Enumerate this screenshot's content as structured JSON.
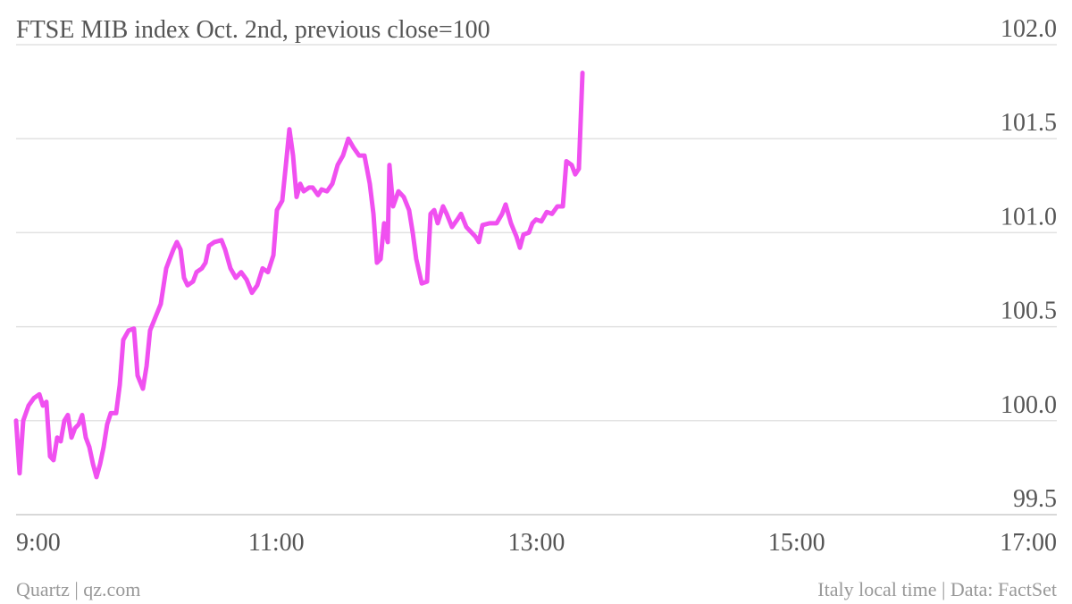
{
  "chart_data": {
    "type": "line",
    "title": "FTSE MIB index Oct. 2nd, previous close=100",
    "source_left": "Quartz | qz.com",
    "source_right": "Italy local time | Data: FactSet",
    "color": "#f050f0",
    "grid": true,
    "xlim": [
      9,
      17
    ],
    "xticks": [
      {
        "value": 9,
        "label": "9:00"
      },
      {
        "value": 11,
        "label": "11:00"
      },
      {
        "value": 13,
        "label": "13:00"
      },
      {
        "value": 15,
        "label": "15:00"
      },
      {
        "value": 17,
        "label": "17:00"
      }
    ],
    "ylim": [
      99.5,
      102
    ],
    "yticks": [
      99.5,
      {
        "value": 100,
        "label": "100.0"
      },
      100.5,
      {
        "value": 101,
        "label": "101.0"
      },
      101.5,
      {
        "value": 102,
        "label": "102.0"
      }
    ],
    "x": [
      9.0,
      9.027,
      9.055,
      9.096,
      9.137,
      9.179,
      9.206,
      9.233,
      9.261,
      9.288,
      9.316,
      9.343,
      9.371,
      9.398,
      9.426,
      9.453,
      9.481,
      9.508,
      9.536,
      9.563,
      9.591,
      9.618,
      9.646,
      9.673,
      9.7,
      9.728,
      9.769,
      9.797,
      9.824,
      9.865,
      9.906,
      9.934,
      9.975,
      10.003,
      10.03,
      10.071,
      10.112,
      10.154,
      10.181,
      10.209,
      10.236,
      10.264,
      10.291,
      10.318,
      10.36,
      10.387,
      10.428,
      10.456,
      10.483,
      10.524,
      10.579,
      10.607,
      10.648,
      10.689,
      10.73,
      10.772,
      10.813,
      10.854,
      10.895,
      10.936,
      10.978,
      11.005,
      11.046,
      11.074,
      11.101,
      11.129,
      11.156,
      11.184,
      11.211,
      11.252,
      11.28,
      11.321,
      11.348,
      11.39,
      11.431,
      11.472,
      11.513,
      11.554,
      11.596,
      11.637,
      11.678,
      11.719,
      11.747,
      11.774,
      11.802,
      11.829,
      11.857,
      11.87,
      11.898,
      11.939,
      11.98,
      12.021,
      12.049,
      12.076,
      12.118,
      12.159,
      12.186,
      12.214,
      12.241,
      12.282,
      12.31,
      12.351,
      12.392,
      12.42,
      12.461,
      12.502,
      12.53,
      12.557,
      12.585,
      12.64,
      12.694,
      12.736,
      12.763,
      12.804,
      12.846,
      12.873,
      12.9,
      12.942,
      12.969,
      12.997,
      13.038,
      13.079,
      13.12,
      13.161,
      13.203,
      13.23,
      13.271,
      13.298,
      13.326,
      13.354
    ],
    "values": [
      100.0,
      99.72,
      100.0,
      100.08,
      100.12,
      100.14,
      100.08,
      100.1,
      99.81,
      99.79,
      99.91,
      99.89,
      100.0,
      100.03,
      99.91,
      99.96,
      99.98,
      100.03,
      99.91,
      99.86,
      99.77,
      99.7,
      99.77,
      99.86,
      99.98,
      100.04,
      100.04,
      100.19,
      100.43,
      100.48,
      100.49,
      100.24,
      100.17,
      100.29,
      100.48,
      100.55,
      100.62,
      100.81,
      100.86,
      100.91,
      100.95,
      100.91,
      100.76,
      100.72,
      100.74,
      100.79,
      100.81,
      100.84,
      100.93,
      100.95,
      100.96,
      100.91,
      100.81,
      100.76,
      100.79,
      100.75,
      100.68,
      100.72,
      100.81,
      100.79,
      100.88,
      101.12,
      101.17,
      101.36,
      101.55,
      101.41,
      101.19,
      101.26,
      101.22,
      101.24,
      101.24,
      101.2,
      101.23,
      101.22,
      101.26,
      101.36,
      101.41,
      101.5,
      101.45,
      101.41,
      101.41,
      101.26,
      101.1,
      100.84,
      100.86,
      101.05,
      100.95,
      101.36,
      101.14,
      101.22,
      101.19,
      101.12,
      101.0,
      100.86,
      100.73,
      100.74,
      101.1,
      101.12,
      101.05,
      101.14,
      101.1,
      101.03,
      101.07,
      101.1,
      101.03,
      101.0,
      100.98,
      100.95,
      101.04,
      101.05,
      101.05,
      101.1,
      101.15,
      101.05,
      100.98,
      100.92,
      100.99,
      101.0,
      101.05,
      101.07,
      101.06,
      101.11,
      101.1,
      101.14,
      101.14,
      101.38,
      101.36,
      101.31,
      101.34,
      101.85
    ]
  }
}
